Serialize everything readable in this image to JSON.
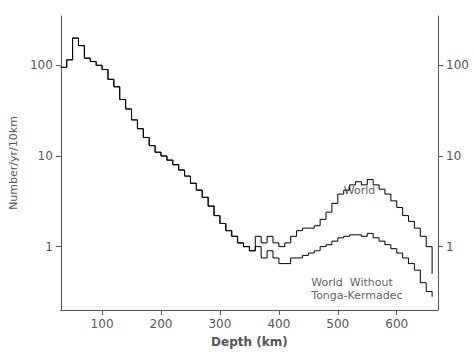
{
  "chart_data": {
    "type": "step",
    "xlabel": "Depth (km)",
    "ylabel": "Number/yr/10km",
    "x": [
      30,
      40,
      50,
      60,
      70,
      80,
      90,
      100,
      110,
      120,
      130,
      140,
      150,
      160,
      170,
      180,
      190,
      200,
      210,
      220,
      230,
      240,
      250,
      260,
      270,
      280,
      290,
      300,
      310,
      320,
      330,
      340,
      350,
      360,
      370,
      380,
      390,
      400,
      410,
      420,
      430,
      440,
      450,
      460,
      470,
      480,
      490,
      500,
      510,
      520,
      530,
      540,
      550,
      560,
      570,
      580,
      590,
      600,
      610,
      620,
      630,
      640,
      650,
      660
    ],
    "series": [
      {
        "color": "black",
        "values": [
          95,
          115,
          200,
          165,
          120,
          110,
          100,
          90,
          70,
          58,
          42,
          33,
          25,
          20,
          16,
          13,
          11,
          10,
          9,
          8,
          7,
          6,
          5,
          4.2,
          3.5,
          2.8,
          2.2,
          1.8,
          1.5,
          1.3,
          1.1,
          1.0,
          0.9,
          1.3,
          1.1,
          1.3,
          1.1,
          1.0,
          1.1,
          1.3,
          1.5,
          1.6,
          1.6,
          1.7,
          2.0,
          2.4,
          3.0,
          3.8,
          4.2,
          4.8,
          5.2,
          4.8,
          5.5,
          4.8,
          4.3,
          3.8,
          3.2,
          2.7,
          2.2,
          1.9,
          1.6,
          1.3,
          1.0,
          0.5
        ]
      },
      {
        "color": "black",
        "values": [
          95,
          115,
          200,
          165,
          120,
          110,
          100,
          90,
          70,
          58,
          42,
          33,
          25,
          20,
          16,
          13,
          11,
          10,
          9,
          8,
          7,
          6,
          5,
          4.2,
          3.5,
          2.8,
          2.2,
          1.8,
          1.5,
          1.3,
          1.1,
          1.0,
          0.9,
          1.0,
          0.75,
          0.9,
          0.75,
          0.65,
          0.65,
          0.75,
          0.75,
          0.8,
          0.85,
          0.9,
          1.0,
          1.05,
          1.15,
          1.25,
          1.3,
          1.35,
          1.35,
          1.3,
          1.4,
          1.25,
          1.15,
          1.05,
          0.95,
          0.85,
          0.75,
          0.65,
          0.55,
          0.4,
          0.32,
          0.28
        ]
      }
    ],
    "xlim": [
      30,
      670
    ],
    "ylim": [
      0.2,
      350
    ],
    "xticks": [
      100,
      200,
      300,
      400,
      500,
      600
    ],
    "yticks": [
      1,
      10,
      100
    ],
    "y2lim": [
      0.2,
      350
    ],
    "y2ticks": [
      1,
      10,
      100
    ],
    "log": "y",
    "grid": false,
    "annotations": [
      {
        "text": "World",
        "x": 510,
        "y": 3.5
      },
      {
        "text": "World  Without\nTonga-Kermadec",
        "x": 455,
        "y": 0.48
      }
    ]
  }
}
